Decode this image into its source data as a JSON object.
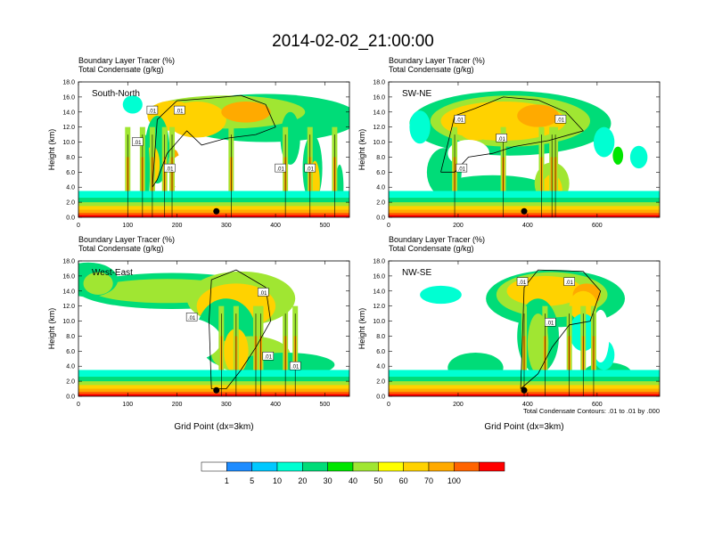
{
  "title": "2014-02-02_21:00:00",
  "chart_data": [
    {
      "type": "heatmap",
      "panel_label": "South-North",
      "header_lines": [
        "Boundary Layer Tracer   (%)",
        "Total Condensate   (g/kg)"
      ],
      "ylabel": "Height (km)",
      "xlabel": "",
      "xlim": [
        0,
        550
      ],
      "ylim": [
        0,
        18
      ],
      "x_ticks": [
        "0",
        "100",
        "200",
        "300",
        "400",
        "500"
      ],
      "y_ticks": [
        "0.0",
        "2.0",
        "4.0",
        "6.0",
        "8.0",
        "10.0",
        "12.0",
        "14.0",
        "16.0",
        "18.0"
      ],
      "contour_labels": [
        ".01",
        ".01",
        ".01",
        ".01",
        ".01",
        ".01"
      ],
      "marker_x": 280
    },
    {
      "type": "heatmap",
      "panel_label": "SW-NE",
      "header_lines": [
        "Boundary Layer Tracer   (%)",
        "Total Condensate   (g/kg)"
      ],
      "ylabel": "Height (km)",
      "xlabel": "",
      "xlim": [
        0,
        780
      ],
      "ylim": [
        0,
        18
      ],
      "x_ticks": [
        "0",
        "200",
        "400",
        "600"
      ],
      "y_ticks": [
        "0.0",
        "2.0",
        "4.0",
        "6.0",
        "8.0",
        "10.0",
        "12.0",
        "14.0",
        "16.0",
        "18.0"
      ],
      "contour_labels": [
        ".01",
        ".01",
        ".01",
        ".01"
      ],
      "marker_x": 390
    },
    {
      "type": "heatmap",
      "panel_label": "West-East",
      "header_lines": [
        "Boundary Layer Tracer   (%)",
        "Total Condensate   (g/kg)"
      ],
      "ylabel": "Height (km)",
      "xlabel": "Grid Point (dx=3km)",
      "xlim": [
        0,
        550
      ],
      "ylim": [
        0,
        18
      ],
      "x_ticks": [
        "0",
        "100",
        "200",
        "300",
        "400",
        "500"
      ],
      "y_ticks": [
        "0.0",
        "2.0",
        "4.0",
        "6.0",
        "8.0",
        "10.0",
        "12.0",
        "14.0",
        "16.0",
        "18.0"
      ],
      "contour_labels": [
        ".01",
        ".01",
        ".01",
        ".01"
      ],
      "marker_x": 280
    },
    {
      "type": "heatmap",
      "panel_label": "NW-SE",
      "header_lines": [
        "Boundary Layer Tracer   (%)",
        "Total Condensate   (g/kg)"
      ],
      "ylabel": "Height (km)",
      "xlabel": "Grid Point (dx=3km)",
      "xlim": [
        0,
        780
      ],
      "ylim": [
        0,
        18
      ],
      "x_ticks": [
        "0",
        "200",
        "400",
        "600"
      ],
      "y_ticks": [
        "0.0",
        "2.0",
        "4.0",
        "6.0",
        "8.0",
        "10.0",
        "12.0",
        "14.0",
        "16.0",
        "18.0"
      ],
      "contour_labels": [
        ".01",
        ".01",
        ".01"
      ],
      "marker_x": 390
    }
  ],
  "contour_note": "Total Condensate Contours: .01 to .01 by .000",
  "colorbar": {
    "labels": [
      "1",
      "5",
      "10",
      "20",
      "30",
      "40",
      "50",
      "60",
      "70",
      "100"
    ],
    "colors": [
      "#ffffff",
      "#1e8cff",
      "#00c8ff",
      "#00ffd2",
      "#00dc78",
      "#00e600",
      "#a0e632",
      "#ffff00",
      "#ffd200",
      "#ffaa00",
      "#ff6400",
      "#ff0000"
    ]
  }
}
